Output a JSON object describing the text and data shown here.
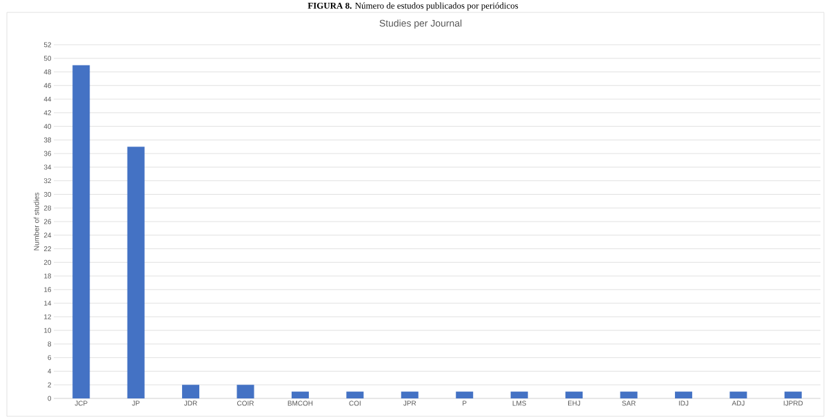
{
  "chart_data": {
    "type": "bar",
    "title": "Studies per Journal",
    "annotations": [
      "**FIGURA 8.** Número de estudos publicados por periódicos"
    ],
    "ylabel": "Number of studies",
    "categories": [
      "JCP",
      "JP",
      "JDR",
      "COIR",
      "BMCOH",
      "COI",
      "JPR",
      "P",
      "LMS",
      "EHJ",
      "SAR",
      "IDJ",
      "ADJ",
      "IJPRD"
    ],
    "values": [
      49,
      37,
      2,
      2,
      1,
      1,
      1,
      1,
      1,
      1,
      1,
      1,
      1,
      1
    ],
    "color": "#4472c4",
    "ylim": [
      0,
      52
    ],
    "yticks": [
      0,
      2,
      4,
      6,
      8,
      10,
      12,
      14,
      16,
      18,
      20,
      22,
      24,
      26,
      28,
      30,
      32,
      34,
      36,
      38,
      40,
      42,
      44,
      46,
      48,
      50,
      52
    ],
    "grid": "y"
  }
}
